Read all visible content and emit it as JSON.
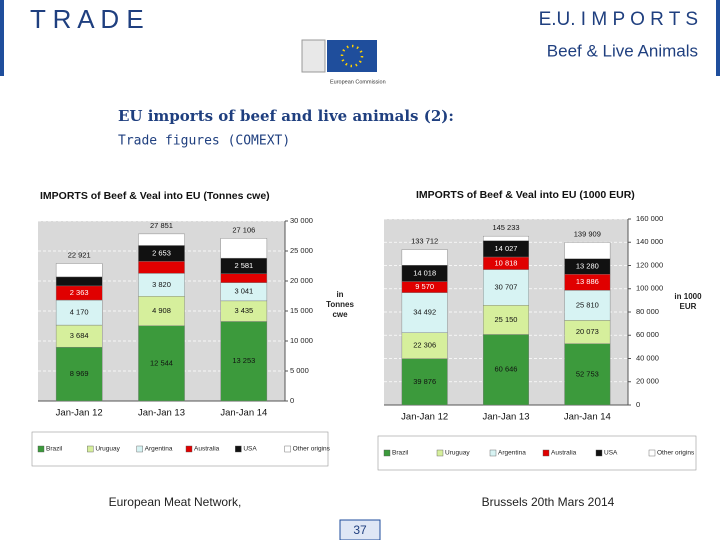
{
  "header": {
    "left": "T R A D E",
    "right": "E.U.   I M P O R T S",
    "subtitle": "Beef & Live Animals",
    "logo_text": "European Commission"
  },
  "heading": {
    "title": "EU imports of beef and live animals (2):",
    "subtitle": "Trade figures (COMEXT)"
  },
  "chart_data": [
    {
      "type": "stacked-bar",
      "title": "IMPORTS of Beef & Veal into EU (Tonnes cwe)",
      "unit_label": "in Tonnes cwe",
      "categories": [
        "Jan-Jan 12",
        "Jan-Jan 13",
        "Jan-Jan 14"
      ],
      "series": [
        {
          "name": "Brazil",
          "color": "#3c9a3c",
          "values": [
            8969,
            12544,
            13253
          ],
          "value_labels": [
            "8 969",
            "12 544",
            "13 253"
          ]
        },
        {
          "name": "Uruguay",
          "color": "#d6ef9c",
          "values": [
            3684,
            4908,
            3435
          ],
          "value_labels": [
            "3 684",
            "4 908",
            "3 435"
          ]
        },
        {
          "name": "Argentina",
          "color": "#d7f3f3",
          "values": [
            4170,
            3820,
            3041
          ],
          "value_labels": [
            "4 170",
            "3 820",
            "3 041"
          ]
        },
        {
          "name": "Australia",
          "color": "#e00000",
          "values": [
            2363,
            2000,
            1500
          ],
          "value_labels": [
            "2 363",
            null,
            null
          ]
        },
        {
          "name": "USA",
          "color": "#111111",
          "values": [
            1500,
            2653,
            2581
          ],
          "value_labels": [
            null,
            "2 653",
            "2 581"
          ]
        },
        {
          "name": "Other origins",
          "color": "#ffffff",
          "values": [
            2235,
            1926,
            3296
          ],
          "value_labels": [
            null,
            null,
            null
          ]
        }
      ],
      "totals": [
        22921,
        27851,
        27106
      ],
      "total_labels": [
        "22 921",
        "27 851",
        "27 106"
      ],
      "ylim": [
        0,
        30000
      ],
      "yticks": [
        0,
        {
          "value": 5000,
          "label": "5 000"
        },
        {
          "value": 10000,
          "label": "10 000"
        },
        {
          "value": 15000,
          "label": "15 000"
        },
        {
          "value": 20000,
          "label": "20 000"
        },
        {
          "value": 25000,
          "label": "25 000"
        },
        {
          "value": 30000,
          "label": "30 000"
        }
      ],
      "grid": true,
      "legend": "bottom"
    },
    {
      "type": "stacked-bar",
      "title": "IMPORTS of Beef & Veal into EU (1000 EUR)",
      "unit_label": "in 1000 EUR",
      "categories": [
        "Jan-Jan 12",
        "Jan-Jan 13",
        "Jan-Jan 14"
      ],
      "series": [
        {
          "name": "Brazil",
          "color": "#3c9a3c",
          "values": [
            39876,
            60646,
            52753
          ],
          "value_labels": [
            "39 876",
            "60 646",
            "52 753"
          ]
        },
        {
          "name": "Uruguay",
          "color": "#d6ef9c",
          "values": [
            22306,
            25150,
            20073
          ],
          "value_labels": [
            "22 306",
            "25 150",
            "20 073"
          ]
        },
        {
          "name": "Argentina",
          "color": "#d7f3f3",
          "values": [
            34492,
            30707,
            25810
          ],
          "value_labels": [
            "34 492",
            "30 707",
            "25 810"
          ]
        },
        {
          "name": "Australia",
          "color": "#e00000",
          "values": [
            9570,
            10818,
            13886
          ],
          "value_labels": [
            "9 570",
            "10 818",
            "13 886"
          ]
        },
        {
          "name": "USA",
          "color": "#111111",
          "values": [
            14018,
            14027,
            13280
          ],
          "value_labels": [
            "14 018",
            "14 027",
            "13 280"
          ]
        },
        {
          "name": "Other origins",
          "color": "#ffffff",
          "values": [
            13450,
            3885,
            14107
          ],
          "value_labels": [
            null,
            null,
            null
          ]
        }
      ],
      "totals": [
        133712,
        145233,
        139909
      ],
      "total_labels": [
        "133 712",
        "145 233",
        "139 909"
      ],
      "ylim": [
        0,
        160000
      ],
      "yticks": [
        0,
        {
          "value": 20000,
          "label": "20 000"
        },
        {
          "value": 40000,
          "label": "40 000"
        },
        {
          "value": 60000,
          "label": "60 000"
        },
        {
          "value": 80000,
          "label": "80 000"
        },
        {
          "value": 100000,
          "label": "100 000"
        },
        {
          "value": 120000,
          "label": "120 000"
        },
        {
          "value": 140000,
          "label": "140 000"
        },
        {
          "value": 160000,
          "label": "160 000"
        }
      ],
      "grid": true,
      "legend": "bottom"
    }
  ],
  "footer": {
    "left": "European Meat Network,",
    "right": "Brussels 20th Mars 2014",
    "page": "37"
  }
}
